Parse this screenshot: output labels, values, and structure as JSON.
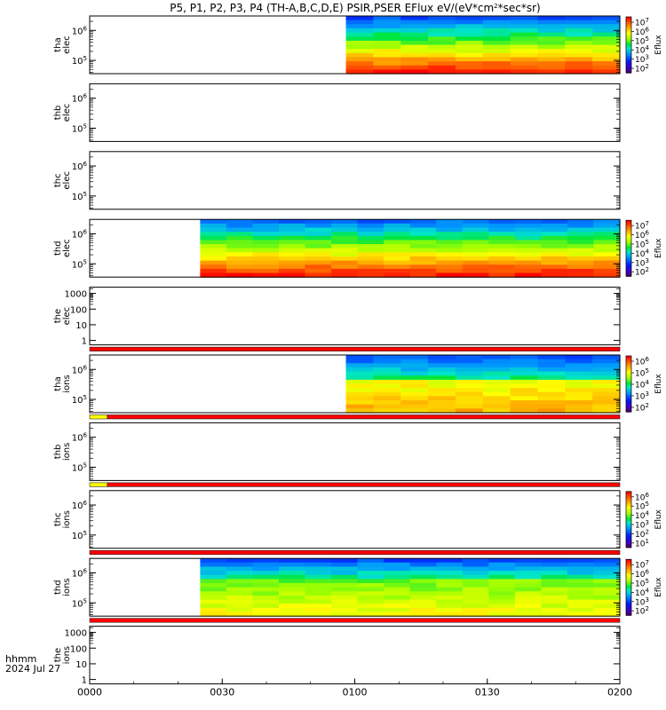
{
  "title": "P5, P1, P2, P3, P4 (TH-A,B,C,D,E) PSIR,PSER EFlux eV/(eV*cm^2*sec*sr)",
  "time_label_1": "hhmm",
  "time_label_2": "2024 Jul 27",
  "chart_data": {
    "type": "heatmap",
    "x_axis": {
      "range": [
        "0000",
        "0200"
      ],
      "ticks": [
        "0000",
        "0030",
        "0100",
        "0130",
        "0200"
      ]
    },
    "panels": [
      {
        "id": "tha-elec",
        "ylabel": [
          "tha",
          "elec"
        ],
        "log_y": true,
        "ytick_labels": [
          {
            "exp": "5",
            "value": 100000
          },
          {
            "exp": "6",
            "value": 1000000
          }
        ],
        "data_start": "0058",
        "data_end": "0200",
        "cbar": {
          "label": "Eflux",
          "tick_exps": [
            "7",
            "6",
            "5",
            "4",
            "3",
            "2"
          ]
        },
        "profile": "elec_a"
      },
      {
        "id": "thb-elec",
        "ylabel": [
          "thb",
          "elec"
        ],
        "log_y": true,
        "ytick_labels": [
          {
            "exp": "5",
            "value": 100000
          },
          {
            "exp": "6",
            "value": 1000000
          }
        ],
        "data_start": null
      },
      {
        "id": "thc-elec",
        "ylabel": [
          "thc",
          "elec"
        ],
        "log_y": true,
        "ytick_labels": [
          {
            "exp": "5",
            "value": 100000
          },
          {
            "exp": "6",
            "value": 1000000
          }
        ],
        "data_start": null
      },
      {
        "id": "thd-elec",
        "ylabel": [
          "thd",
          "elec"
        ],
        "log_y": true,
        "ytick_labels": [
          {
            "exp": "5",
            "value": 100000
          },
          {
            "exp": "6",
            "value": 1000000
          }
        ],
        "data_start": "0025",
        "data_end": "0200",
        "cbar": {
          "label": "Eflux",
          "tick_exps": [
            "7",
            "6",
            "5",
            "4",
            "3",
            "2"
          ]
        },
        "profile": "elec_d"
      },
      {
        "id": "the-elec",
        "ylabel": [
          "the",
          "elec"
        ],
        "log_y": true,
        "ytick_labels": [
          {
            "text": "1000"
          },
          {
            "text": "100"
          },
          {
            "text": "10"
          },
          {
            "text": "1"
          }
        ],
        "data_start": null,
        "flag_bar": [
          {
            "color": "#ff0000",
            "from": "0000",
            "to": "0200"
          }
        ]
      },
      {
        "id": "tha-ions",
        "ylabel": [
          "tha",
          "ions"
        ],
        "log_y": true,
        "ytick_labels": [
          {
            "exp": "5",
            "value": 100000
          },
          {
            "exp": "6",
            "value": 1000000
          }
        ],
        "data_start": "0058",
        "data_end": "0200",
        "cbar": {
          "label": "Eflux",
          "tick_exps": [
            "6",
            "5",
            "4",
            "3",
            "2"
          ]
        },
        "profile": "ions_a",
        "flag_bar": [
          {
            "color": "#ffff00",
            "from": "0000",
            "to": "0004"
          },
          {
            "color": "#ff0000",
            "from": "0004",
            "to": "0200"
          }
        ]
      },
      {
        "id": "thb-ions",
        "ylabel": [
          "thb",
          "ions"
        ],
        "log_y": true,
        "ytick_labels": [
          {
            "exp": "5",
            "value": 100000
          },
          {
            "exp": "6",
            "value": 1000000
          }
        ],
        "data_start": null,
        "flag_bar": [
          {
            "color": "#ffff00",
            "from": "0000",
            "to": "0004"
          },
          {
            "color": "#ff0000",
            "from": "0004",
            "to": "0200"
          }
        ]
      },
      {
        "id": "thc-ions",
        "ylabel": [
          "thc",
          "ions"
        ],
        "log_y": true,
        "ytick_labels": [
          {
            "exp": "5",
            "value": 100000
          },
          {
            "exp": "6",
            "value": 1000000
          }
        ],
        "data_start": null,
        "cbar": {
          "label": "Eflux",
          "tick_exps": [
            "6",
            "5",
            "4",
            "3",
            "2",
            "1"
          ]
        },
        "flag_bar": [
          {
            "color": "#ff0000",
            "from": "0000",
            "to": "0200"
          }
        ]
      },
      {
        "id": "thd-ions",
        "ylabel": [
          "thd",
          "ions"
        ],
        "log_y": true,
        "ytick_labels": [
          {
            "exp": "5",
            "value": 100000
          },
          {
            "exp": "6",
            "value": 1000000
          }
        ],
        "data_start": "0025",
        "data_end": "0200",
        "cbar": {
          "label": "Eflux",
          "tick_exps": [
            "7",
            "6",
            "5",
            "4",
            "3",
            "2"
          ]
        },
        "profile": "ions_d",
        "flag_bar": [
          {
            "color": "#ff0000",
            "from": "0000",
            "to": "0200"
          }
        ]
      },
      {
        "id": "the-ions",
        "ylabel": [
          "the",
          "ions"
        ],
        "log_y": true,
        "ytick_labels": [
          {
            "text": "1000"
          },
          {
            "text": "100"
          },
          {
            "text": "10"
          },
          {
            "text": "1"
          }
        ],
        "data_start": null
      }
    ]
  }
}
